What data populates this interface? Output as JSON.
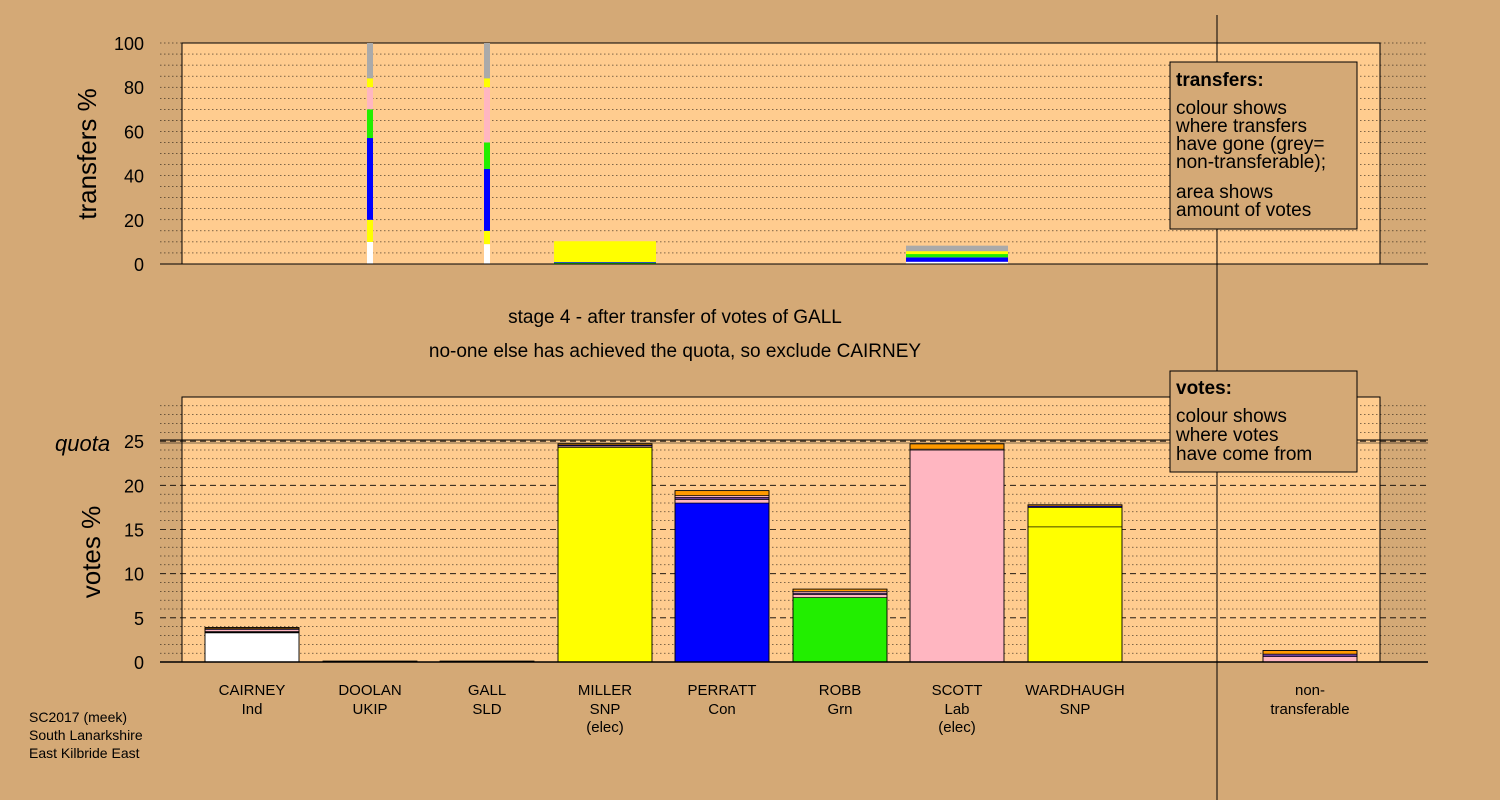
{
  "chart_data": [
    {
      "type": "bar",
      "role": "transfers",
      "ylabel": "transfers %",
      "ylim": [
        0,
        100
      ],
      "yticks": [
        "0",
        "20",
        "40",
        "60",
        "80",
        "100"
      ],
      "categories": [
        "CAIRNEY",
        "DOOLAN",
        "GALL",
        "MILLER",
        "PERRATT",
        "ROBB",
        "SCOTT",
        "WARDHAUGH",
        "non-transferable"
      ],
      "stacks": [
        {
          "candidate": "DOOLAN",
          "segments": [
            {
              "colour": "#ffffff",
              "value": 10
            },
            {
              "colour": "#ffff00",
              "value": 10
            },
            {
              "colour": "#0000ff",
              "value": 37
            },
            {
              "colour": "#22ee00",
              "value": 13
            },
            {
              "colour": "#ffb6c1",
              "value": 10
            },
            {
              "colour": "#ffff00",
              "value": 4
            },
            {
              "colour": "#aaaaaa",
              "value": 16
            }
          ]
        },
        {
          "candidate": "GALL",
          "segments": [
            {
              "colour": "#ffffff",
              "value": 9
            },
            {
              "colour": "#ffff00",
              "value": 6
            },
            {
              "colour": "#0000ff",
              "value": 28
            },
            {
              "colour": "#22ee00",
              "value": 12
            },
            {
              "colour": "#ffb6c1",
              "value": 25
            },
            {
              "colour": "#ffff00",
              "value": 4
            },
            {
              "colour": "#aaaaaa",
              "value": 16
            }
          ]
        }
      ],
      "received": [
        {
          "candidate": "MILLER",
          "segments": [
            {
              "colour": "#22ee00",
              "value": 0.6
            },
            {
              "colour": "#0000ff",
              "value": 0.3
            },
            {
              "colour": "#ffff00",
              "value": 9.4
            }
          ]
        },
        {
          "candidate": "SCOTT",
          "segments": [
            {
              "colour": "#ffffff",
              "value": 1
            },
            {
              "colour": "#0000ff",
              "value": 2
            },
            {
              "colour": "#22ee00",
              "value": 1.5
            },
            {
              "colour": "#ffff00",
              "value": 1.3
            },
            {
              "colour": "#aaaaaa",
              "value": 2.5
            }
          ]
        }
      ]
    },
    {
      "type": "bar",
      "role": "votes",
      "ylabel": "votes %",
      "ylim": [
        0,
        30
      ],
      "yticks": [
        "0",
        "5",
        "10",
        "15",
        "20",
        "25"
      ],
      "quota": 24.7,
      "quota_label": "quota",
      "categories": [
        "CAIRNEY",
        "DOOLAN",
        "GALL",
        "MILLER",
        "PERRATT",
        "ROBB",
        "SCOTT",
        "WARDHAUGH",
        "non-transferable"
      ],
      "series": [
        {
          "candidate": "CAIRNEY",
          "segments": [
            {
              "colour": "#ffffff",
              "value": 3.3
            },
            {
              "colour": "#000000",
              "value": 0.15
            },
            {
              "colour": "#ffb6c1",
              "value": 0.25
            },
            {
              "colour": "#0000ff",
              "value": 0.08
            },
            {
              "colour": "#ff9900",
              "value": 0.12
            }
          ]
        },
        {
          "candidate": "DOOLAN",
          "segments": [
            {
              "colour": "#6a3d9a",
              "value": 0.1
            }
          ]
        },
        {
          "candidate": "GALL",
          "segments": [
            {
              "colour": "#ff9900",
              "value": 0.1
            }
          ]
        },
        {
          "candidate": "MILLER",
          "segments": [
            {
              "colour": "#ffff00",
              "value": 24.3
            },
            {
              "colour": "#ffb6c1",
              "value": 0.15
            },
            {
              "colour": "#0000ff",
              "value": 0.1
            },
            {
              "colour": "#ff9900",
              "value": 0.15
            }
          ]
        },
        {
          "candidate": "PERRATT",
          "segments": [
            {
              "colour": "#0000ff",
              "value": 18
            },
            {
              "colour": "#ffb6c1",
              "value": 0.4
            },
            {
              "colour": "#6a3d9a",
              "value": 0.25
            },
            {
              "colour": "#ffb6c1",
              "value": 0.2
            },
            {
              "colour": "#ff9900",
              "value": 0.55
            }
          ]
        },
        {
          "candidate": "ROBB",
          "segments": [
            {
              "colour": "#22ee00",
              "value": 7.3
            },
            {
              "colour": "#ffb6c1",
              "value": 0.35
            },
            {
              "colour": "#6a3d9a",
              "value": 0.15
            },
            {
              "colour": "#ffb6c1",
              "value": 0.2
            },
            {
              "colour": "#ff9900",
              "value": 0.25
            }
          ]
        },
        {
          "candidate": "SCOTT",
          "segments": [
            {
              "colour": "#ffb6c1",
              "value": 24
            },
            {
              "colour": "#ffb6c1",
              "value": 0.1
            },
            {
              "colour": "#ff9900",
              "value": 0.6
            }
          ]
        },
        {
          "candidate": "WARDHAUGH",
          "segments": [
            {
              "colour": "#ffff00",
              "value": 15.3
            },
            {
              "colour": "#ffff00",
              "value": 2.2
            },
            {
              "colour": "#0000ff",
              "value": 0.15
            },
            {
              "colour": "#ff9900",
              "value": 0.15
            }
          ]
        },
        {
          "candidate": "non-transferable",
          "segments": [
            {
              "colour": "#ffb6c1",
              "value": 0.6
            },
            {
              "colour": "#6a3d9a",
              "value": 0.3
            },
            {
              "colour": "#ff9900",
              "value": 0.4
            }
          ]
        }
      ]
    }
  ],
  "candidates": [
    {
      "name": "CAIRNEY",
      "party": "Ind",
      "status": ""
    },
    {
      "name": "DOOLAN",
      "party": "UKIP",
      "status": ""
    },
    {
      "name": "GALL",
      "party": "SLD",
      "status": ""
    },
    {
      "name": "MILLER",
      "party": "SNP",
      "status": "(elec)"
    },
    {
      "name": "PERRATT",
      "party": "Con",
      "status": ""
    },
    {
      "name": "ROBB",
      "party": "Grn",
      "status": ""
    },
    {
      "name": "SCOTT",
      "party": "Lab",
      "status": "(elec)"
    },
    {
      "name": "WARDHAUGH",
      "party": "SNP",
      "status": ""
    }
  ],
  "non_transferable": {
    "line1": "non-",
    "line2": "transferable"
  },
  "stage_caption": "stage 4 - after transfer of votes of GALL",
  "exclude_caption": "no-one else has achieved the quota, so exclude CAIRNEY",
  "transfers_legend": {
    "title": "transfers:",
    "lines": [
      "colour shows",
      "where transfers",
      "have gone (grey=",
      "non-transferable);"
    ],
    "lines2": [
      "area shows",
      "amount of votes"
    ]
  },
  "votes_legend": {
    "title": "votes:",
    "lines": [
      "colour shows",
      "where votes",
      "have come from"
    ]
  },
  "footer": {
    "line1": "SC2017 (meek)",
    "line2": "South Lanarkshire",
    "line3": "East Kilbride East"
  },
  "colors": {
    "background": "#d4a976",
    "plot": "#ffcc8f",
    "snp": "#ffff00",
    "con": "#0000ff",
    "grn": "#22ee00",
    "lab": "#ffb6c1",
    "non_transferable": "#aaaaaa"
  }
}
